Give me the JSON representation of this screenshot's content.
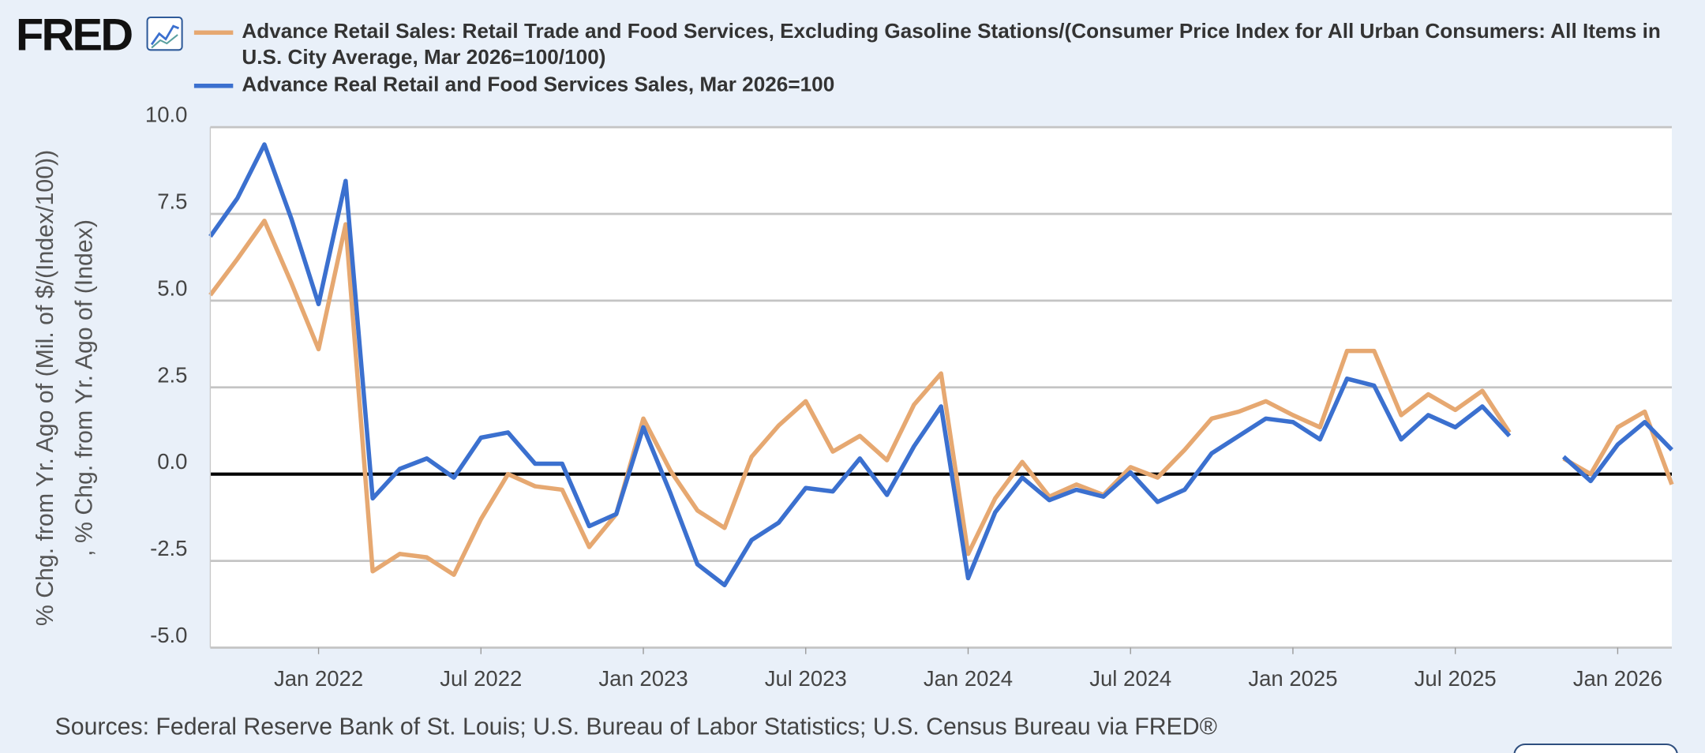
{
  "logo": "FRED",
  "chart_data": {
    "type": "line",
    "ylabel": [
      "% Chg. from Yr. Ago of (Mil. of $/(Index/100))",
      ", % Chg. from Yr. Ago of (Index)"
    ],
    "source": "Sources: Federal Reserve Bank of St. Louis; U.S. Bureau of Labor Statistics; U.S. Census Bureau via FRED®",
    "x": [
      "2021-09",
      "2021-10",
      "2021-11",
      "2021-12",
      "2022-01",
      "2022-02",
      "2022-03",
      "2022-04",
      "2022-05",
      "2022-06",
      "2022-07",
      "2022-08",
      "2022-09",
      "2022-10",
      "2022-11",
      "2022-12",
      "2023-01",
      "2023-02",
      "2023-03",
      "2023-04",
      "2023-05",
      "2023-06",
      "2023-07",
      "2023-08",
      "2023-09",
      "2023-10",
      "2023-11",
      "2023-12",
      "2024-01",
      "2024-02",
      "2024-03",
      "2024-04",
      "2024-05",
      "2024-06",
      "2024-07",
      "2024-08",
      "2024-09",
      "2024-10",
      "2024-11",
      "2024-12",
      "2025-01",
      "2025-02",
      "2025-03",
      "2025-04",
      "2025-05",
      "2025-06",
      "2025-07",
      "2025-08",
      "2025-09",
      "2025-10",
      "2025-11",
      "2025-12",
      "2026-01",
      "2026-02",
      "2026-03"
    ],
    "xlim": [
      "2021-09",
      "2026-03"
    ],
    "xticks": [
      {
        "value": "2022-01",
        "label": "Jan 2022"
      },
      {
        "value": "2022-07",
        "label": "Jul 2022"
      },
      {
        "value": "2023-01",
        "label": "Jan 2023"
      },
      {
        "value": "2023-07",
        "label": "Jul 2023"
      },
      {
        "value": "2024-01",
        "label": "Jan 2024"
      },
      {
        "value": "2024-07",
        "label": "Jul 2024"
      },
      {
        "value": "2025-01",
        "label": "Jan 2025"
      },
      {
        "value": "2025-07",
        "label": "Jul 2025"
      },
      {
        "value": "2026-01",
        "label": "Jan 2026"
      }
    ],
    "ylim": [
      -5,
      10
    ],
    "yticks": [
      {
        "value": -5,
        "label": "-5.0"
      },
      -2.5,
      {
        "value": 0,
        "label": "0.0"
      },
      2.5,
      {
        "value": 5,
        "label": "5.0"
      },
      7.5,
      {
        "value": 10,
        "label": "10.0"
      }
    ],
    "grid": true,
    "series": [
      {
        "name": "Advance Retail Sales: Retail Trade and Food Services, Excluding Gasoline Stations/(Consumer Price Index for All Urban Consumers: All Items in U.S. City Average, Mar 2026=100/100)",
        "color": "#e6a871",
        "values": [
          5.16,
          6.2,
          7.3,
          5.5,
          3.6,
          7.2,
          -2.8,
          -2.3,
          -2.4,
          -2.9,
          -1.3,
          0.0,
          -0.35,
          -0.45,
          -2.1,
          -1.15,
          1.6,
          0.1,
          -1.05,
          -1.55,
          0.5,
          1.4,
          2.1,
          0.65,
          1.1,
          0.4,
          2.0,
          2.9,
          -2.3,
          -0.7,
          0.35,
          -0.65,
          -0.3,
          -0.6,
          0.2,
          -0.1,
          0.7,
          1.6,
          1.8,
          2.1,
          1.7,
          1.35,
          3.55,
          3.55,
          1.7,
          2.3,
          1.85,
          2.4,
          1.2,
          null,
          0.45,
          0.0,
          1.35,
          1.8,
          -0.3
        ]
      },
      {
        "name": "Advance Real Retail and Food Services Sales, Mar 2026=100",
        "color": "#3b70cf",
        "values": [
          6.85,
          7.95,
          9.5,
          7.35,
          4.9,
          8.45,
          -0.7,
          0.15,
          0.45,
          -0.1,
          1.05,
          1.2,
          0.3,
          0.3,
          -1.5,
          -1.15,
          1.35,
          -0.55,
          -2.6,
          -3.2,
          -1.9,
          -1.4,
          -0.4,
          -0.5,
          0.45,
          -0.6,
          0.8,
          1.95,
          -3.0,
          -1.1,
          -0.1,
          -0.75,
          -0.45,
          -0.65,
          0.05,
          -0.8,
          -0.45,
          0.6,
          1.1,
          1.6,
          1.5,
          1.0,
          2.75,
          2.55,
          1.0,
          1.7,
          1.35,
          1.95,
          1.1,
          null,
          0.5,
          -0.2,
          0.85,
          1.5,
          0.7
        ]
      }
    ]
  }
}
